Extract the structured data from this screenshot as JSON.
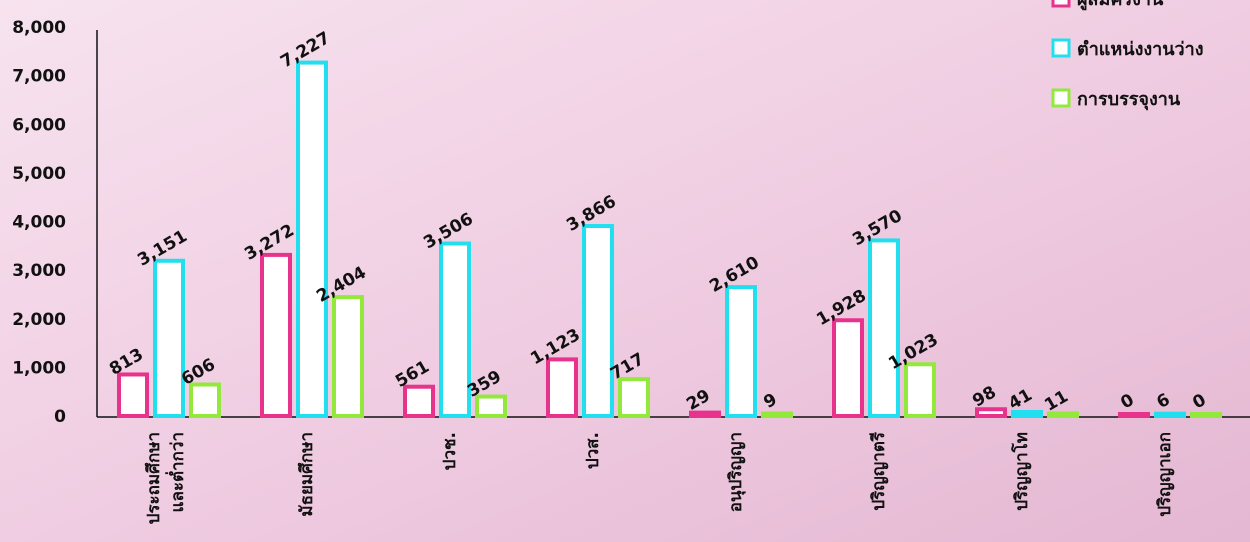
{
  "chart_data": {
    "type": "bar",
    "categories": [
      "ประถมศึกษา\nและต่ำกว่า",
      "มัธยมศึกษา",
      "ปวช.",
      "ปวส.",
      "อนุปริญญา",
      "ปริญญาตรี",
      "ปริญญาโท",
      "ปริญญาเอก"
    ],
    "series": [
      {
        "name": "ผู้สมัครงาน",
        "color": "#e8338c",
        "values": [
          813,
          3272,
          561,
          1123,
          29,
          1928,
          98,
          0
        ],
        "value_labels": [
          "813",
          "3,272",
          "561",
          "1,123",
          "29",
          "1,928",
          "98",
          "0"
        ]
      },
      {
        "name": "ตำแหน่งงานว่าง",
        "color": "#22dff0",
        "values": [
          3151,
          7227,
          3506,
          3866,
          2610,
          3570,
          41,
          6
        ],
        "value_labels": [
          "3,151",
          "7,227",
          "3,506",
          "3,866",
          "2,610",
          "3,570",
          "41",
          "6"
        ]
      },
      {
        "name": "การบรรจุงาน",
        "color": "#93e83c",
        "values": [
          606,
          2404,
          359,
          717,
          9,
          1023,
          11,
          0
        ],
        "value_labels": [
          "606",
          "2,404",
          "359",
          "717",
          "9",
          "1,023",
          "11",
          "0"
        ]
      }
    ],
    "ylim": [
      0,
      8000
    ],
    "yticks": [
      0,
      {
        "value": 1000,
        "label": "1,000"
      },
      {
        "value": 2000,
        "label": "2,000"
      },
      {
        "value": 3000,
        "label": "3,000"
      },
      {
        "value": 4000,
        "label": "4,000"
      },
      {
        "value": 5000,
        "label": "5,000"
      },
      {
        "value": 6000,
        "label": "6,000"
      },
      {
        "value": 7000,
        "label": "7,000"
      },
      {
        "value": 8000,
        "label": "8,000"
      }
    ],
    "grid": false
  }
}
